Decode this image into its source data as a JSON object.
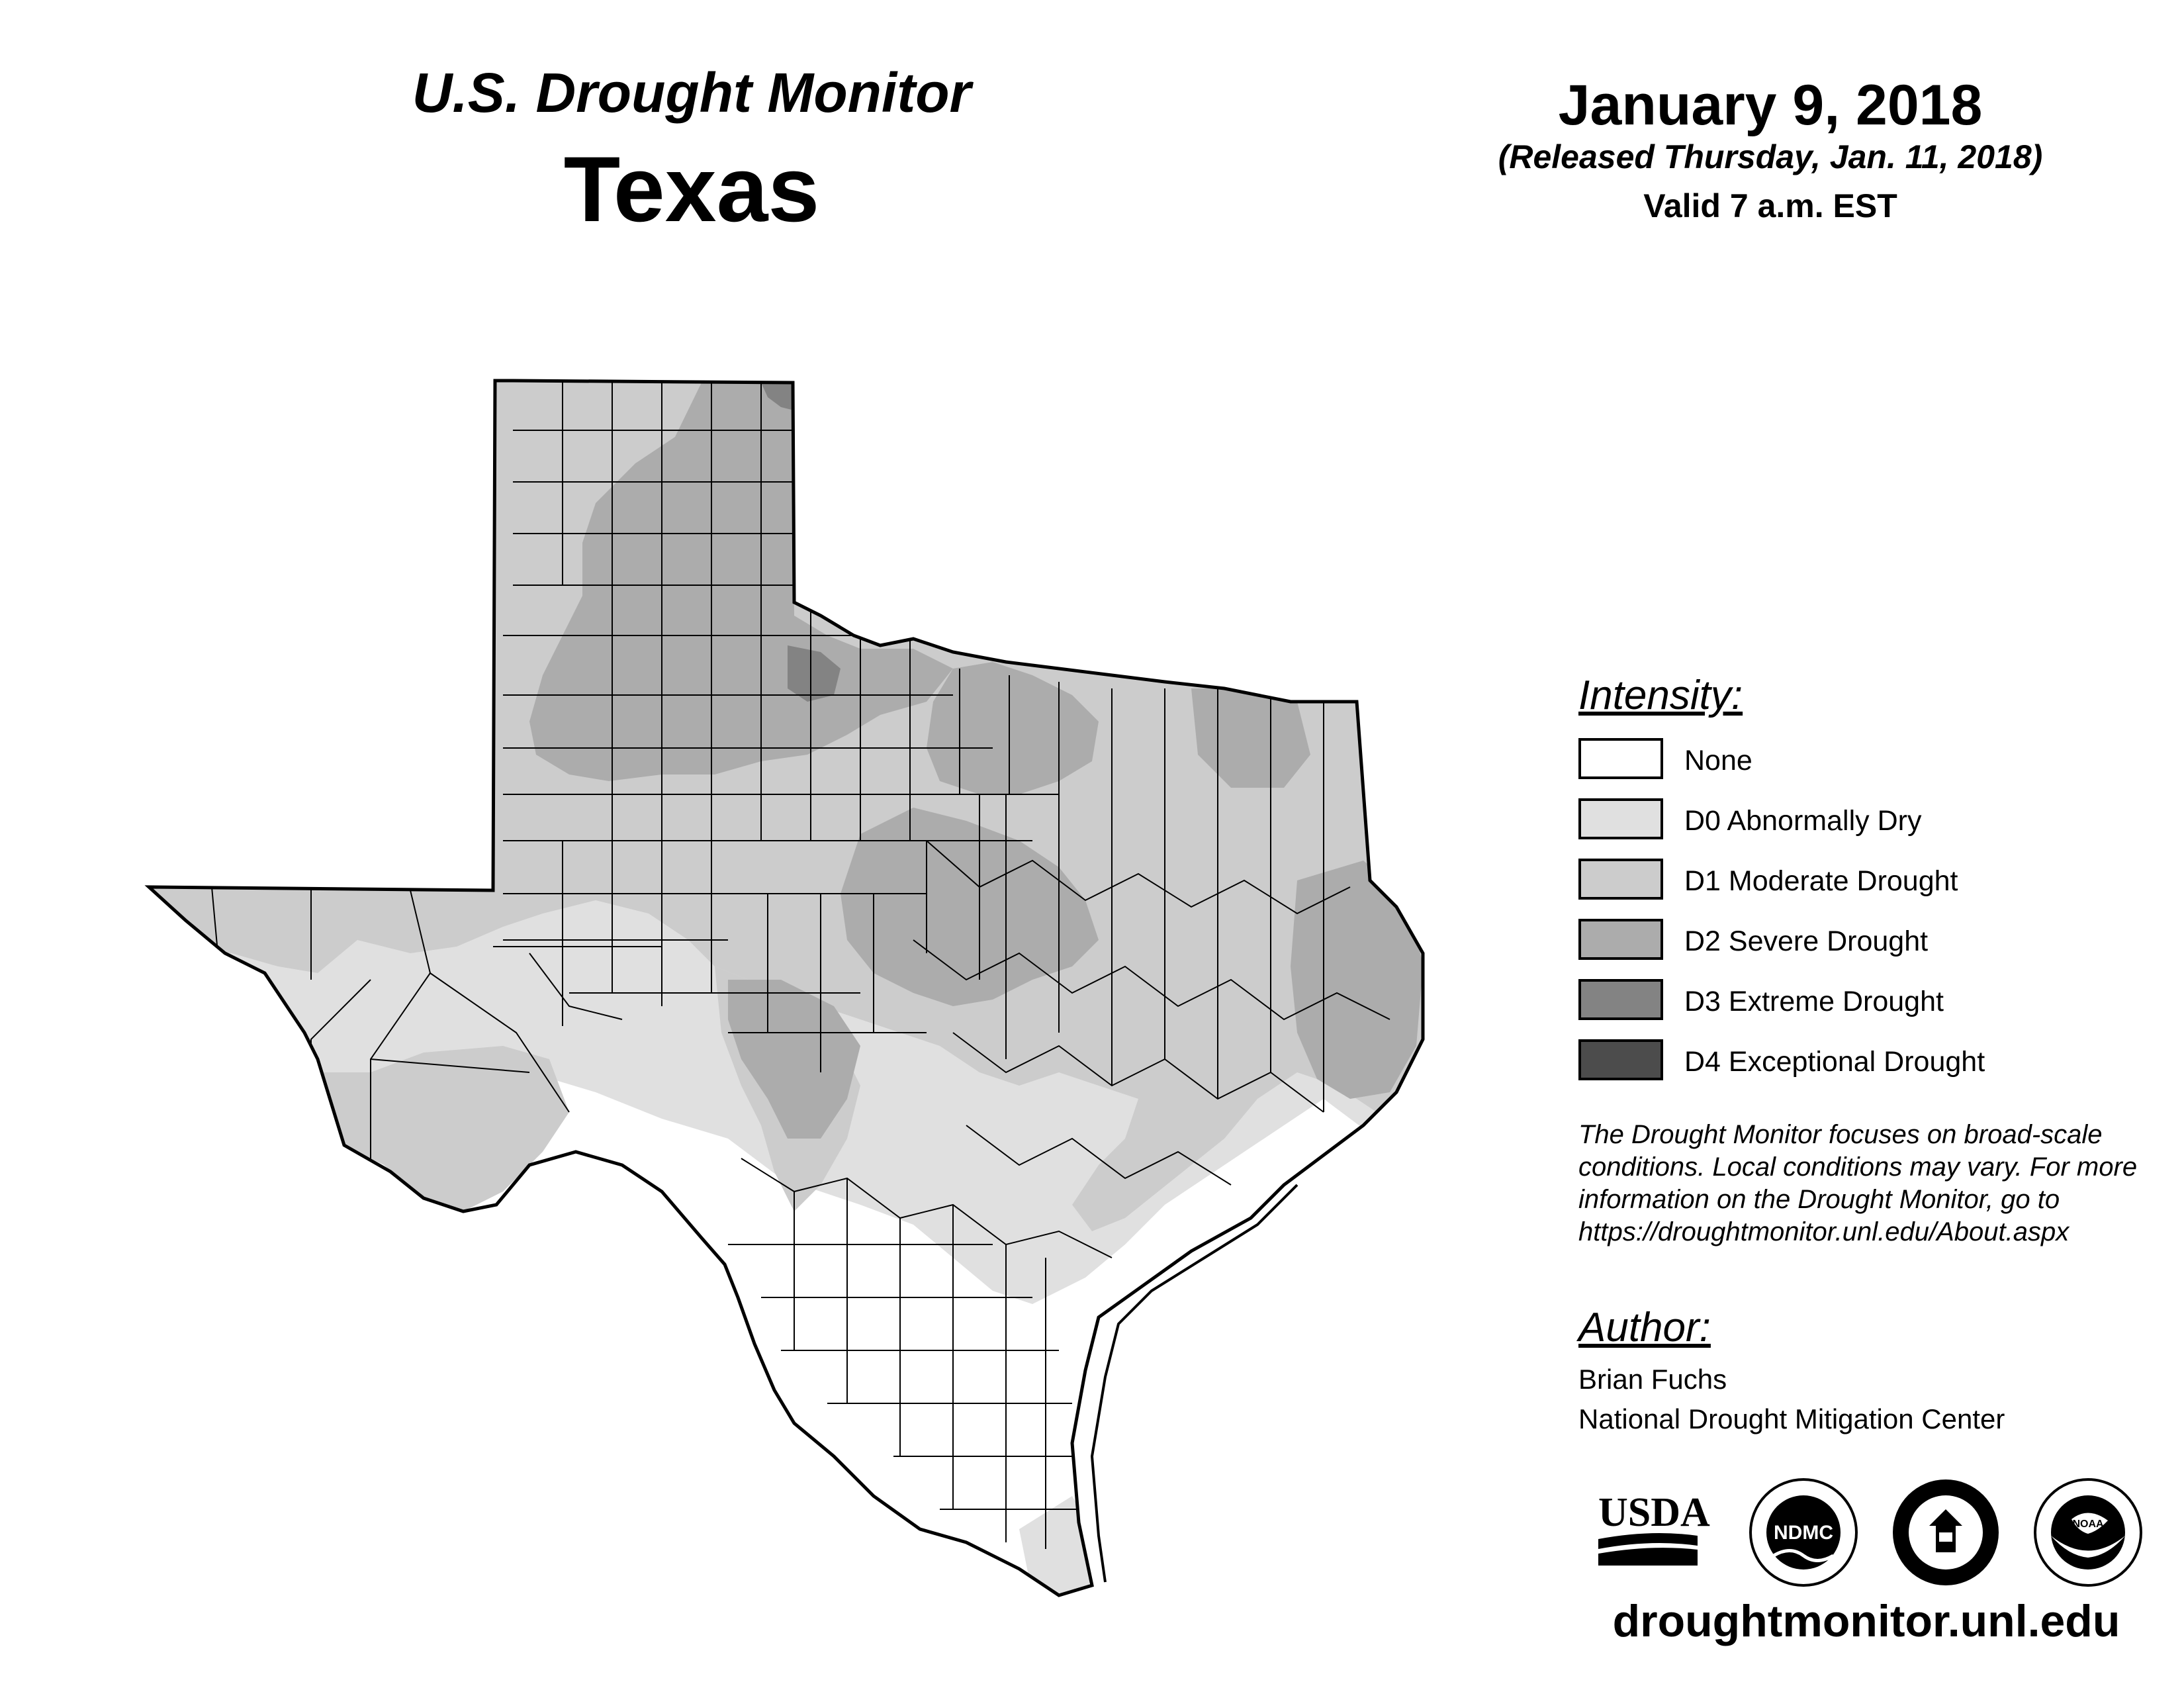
{
  "header": {
    "title": "U.S. Drought Monitor",
    "state": "Texas",
    "date": "January 9, 2018",
    "released": "(Released Thursday, Jan. 11, 2018)",
    "valid": "Valid 7 a.m. EST"
  },
  "legend": {
    "title": "Intensity:",
    "items": [
      {
        "label": "None",
        "color": "#ffffff"
      },
      {
        "label": "D0 Abnormally Dry",
        "color": "#e0e0e0"
      },
      {
        "label": "D1 Moderate Drought",
        "color": "#cccccc"
      },
      {
        "label": "D2 Severe Drought",
        "color": "#acacac"
      },
      {
        "label": "D3 Extreme Drought",
        "color": "#838383"
      },
      {
        "label": "D4 Exceptional Drought",
        "color": "#4c4c4c"
      }
    ]
  },
  "note": "The Drought Monitor focuses on broad-scale conditions. Local conditions may vary. For more information on the Drought Monitor, go to https://droughtmonitor.unl.edu/About.aspx",
  "author": {
    "title": "Author:",
    "name": "Brian Fuchs",
    "org": "National Drought Mitigation Center"
  },
  "logos": {
    "usda": "USDA",
    "ndmc": "NDMC",
    "commerce_icon": "department-of-commerce-seal",
    "noaa": "NOAA"
  },
  "footer_url": "droughtmonitor.unl.edu"
}
